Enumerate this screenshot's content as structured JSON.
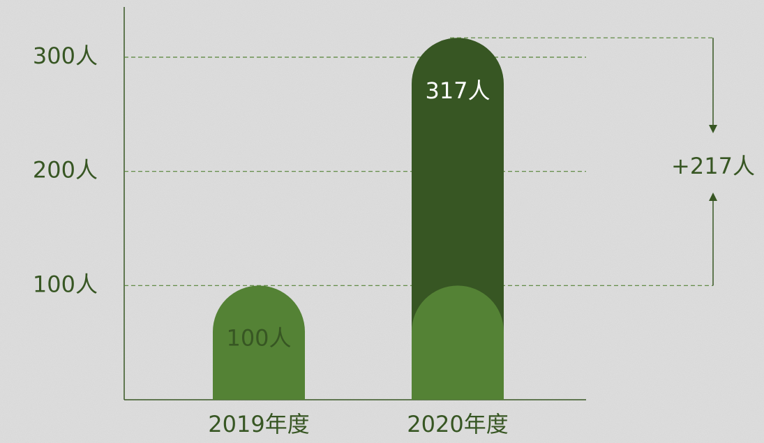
{
  "chart_data": {
    "type": "bar",
    "categories": [
      "2019年度",
      "2020年度"
    ],
    "values": [
      100,
      317
    ],
    "value_labels": [
      "100人",
      "317人"
    ],
    "colors": [
      "#548235",
      "#375623"
    ],
    "ylim": [
      0,
      344
    ],
    "yticks": [
      {
        "value": 100,
        "label": "100人"
      },
      {
        "value": 200,
        "label": "200人"
      },
      {
        "value": 300,
        "label": "300人"
      }
    ],
    "grid": true,
    "annotation": "+217人"
  }
}
